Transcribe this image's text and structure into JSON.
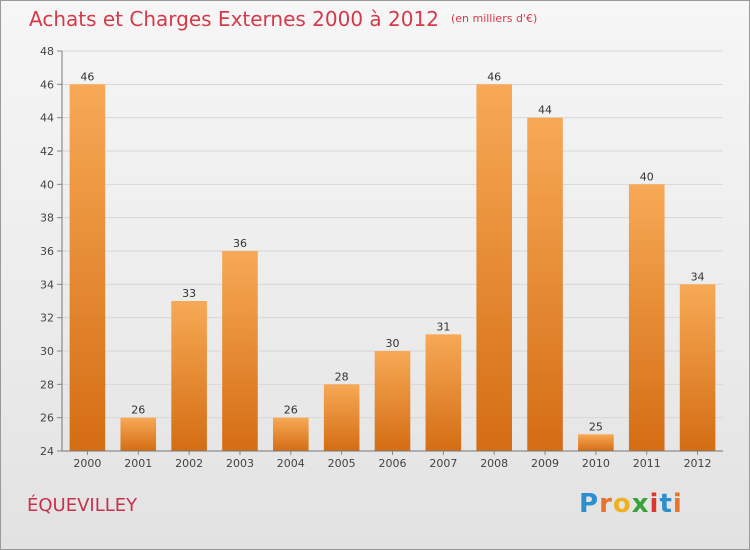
{
  "header": {
    "title": "Achats et Charges Externes 2000 à 2012",
    "unit": "(en milliers d'€)"
  },
  "footer": {
    "commune": "ÉQUEVILLEY",
    "logo_text": "Proxiti"
  },
  "colors": {
    "bar_light": "#f7a955",
    "bar_dark": "#d46d14",
    "title": "#d43a4a",
    "commune": "#c9304a",
    "grid": "#d7d7d7"
  },
  "chart_data": {
    "type": "bar",
    "title": "Achats et Charges Externes 2000 à 2012",
    "subtitle": "(en milliers d'€)",
    "xlabel": "",
    "ylabel": "",
    "categories": [
      "2000",
      "2001",
      "2002",
      "2003",
      "2004",
      "2005",
      "2006",
      "2007",
      "2008",
      "2009",
      "2010",
      "2011",
      "2012"
    ],
    "values": [
      46,
      26,
      33,
      36,
      26,
      28,
      30,
      31,
      46,
      44,
      25,
      40,
      34
    ],
    "ylim": [
      24,
      48
    ],
    "yticks": [
      24,
      26,
      28,
      30,
      32,
      34,
      36,
      38,
      40,
      42,
      44,
      46,
      48
    ],
    "grid": true,
    "data_labels": true
  }
}
